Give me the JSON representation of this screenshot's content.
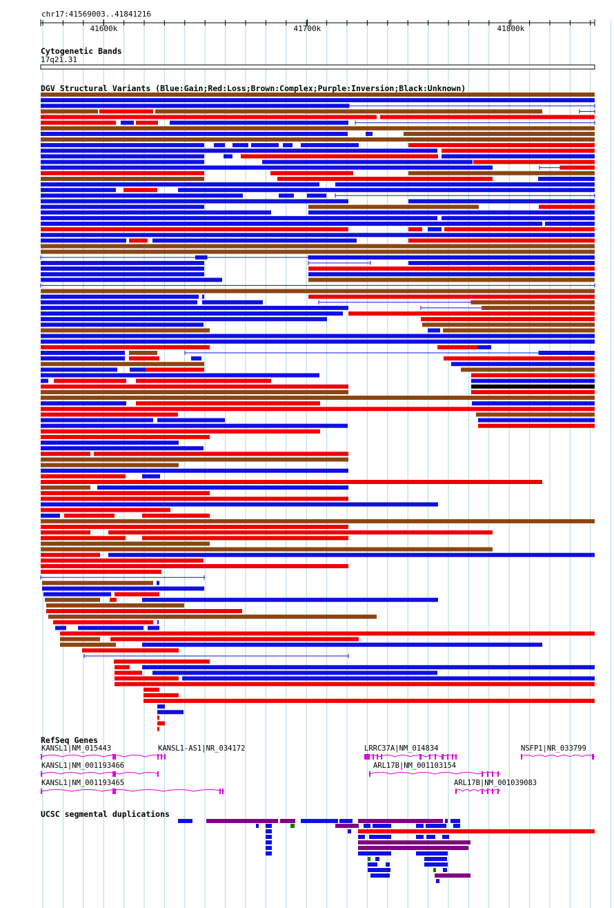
{
  "coordinate_label": "chr17:41569003..41841216",
  "ruler": {
    "start": 41569003,
    "end": 41841216,
    "ticks": [
      {
        "pos": 41600000,
        "label": "41600k"
      },
      {
        "pos": 41700000,
        "label": "41700k"
      },
      {
        "pos": 41800000,
        "label": "41800k"
      }
    ]
  },
  "cytobands": {
    "title": "Cytogenetic Bands",
    "band_label": "17q21.31"
  },
  "dgv": {
    "title": "DGV Structural Variants (Blue:Gain;Red:Loss;Brown:Complex;Purple:Inversion;Black:Unknown)",
    "legend_colors": {
      "B": "#1010e0",
      "R": "#ee0000",
      "N": "#8b4513",
      "P": "#800080",
      "K": "#000000"
    }
  },
  "refseq": {
    "title": "RefSeq Genes",
    "gene_labels": [
      "KANSL1|NM_015443",
      "KANSL1-AS1|NR_034172",
      "LRRC37A|NM_014834",
      "NSFP1|NR_033799",
      "KANSL1|NM_001193466",
      "ARL17B|NM_001103154",
      "KANSL1|NM_001193465",
      "ARL17B|NM_001039083"
    ]
  },
  "segdups": {
    "title": "UCSC segmental duplications",
    "colors": {
      "blue": "#1010e0",
      "purple": "#800080",
      "red": "#ee0000",
      "green": "#008000"
    }
  }
}
